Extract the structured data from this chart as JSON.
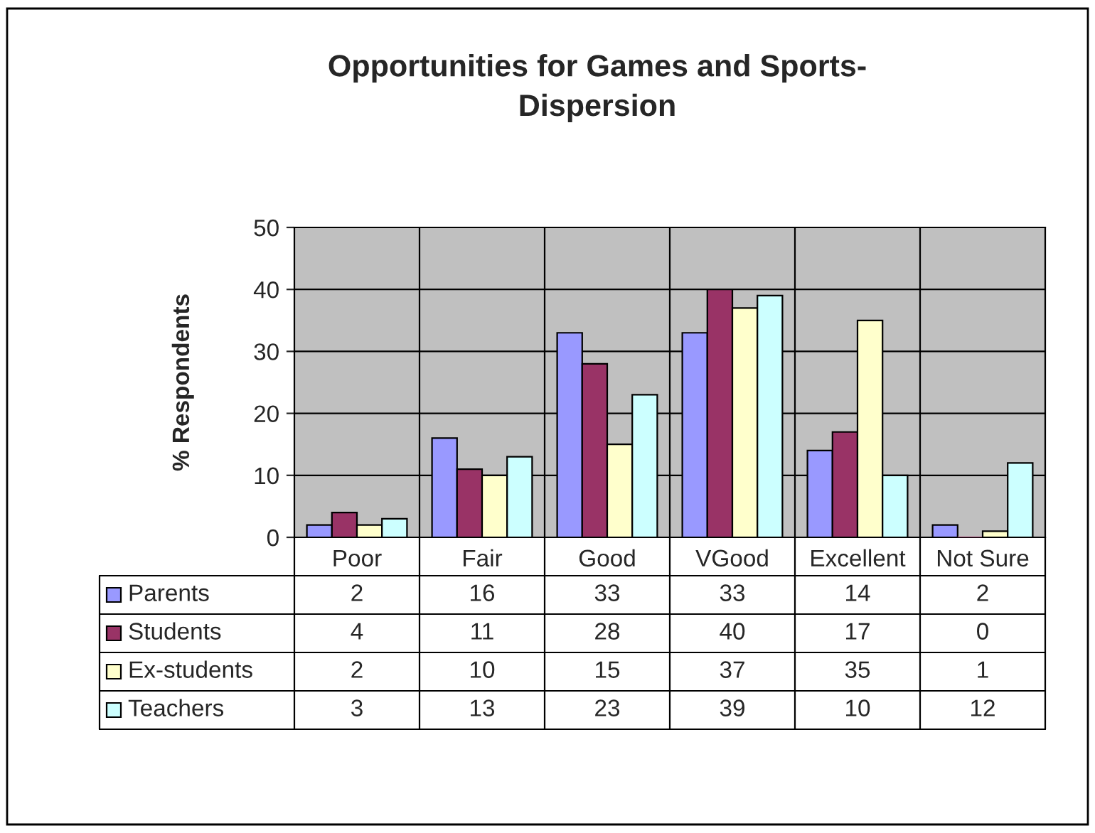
{
  "chart_data": {
    "type": "bar",
    "title": "Opportunities for Games and Sports-\nDispersion",
    "ylabel": "% Respondents",
    "categories": [
      "Poor",
      "Fair",
      "Good",
      "VGood",
      "Excellent",
      "Not Sure"
    ],
    "series": [
      {
        "name": "Parents",
        "color": "#9999ff",
        "values": [
          2,
          16,
          33,
          33,
          14,
          2
        ]
      },
      {
        "name": "Students",
        "color": "#993366",
        "values": [
          4,
          11,
          28,
          40,
          17,
          0
        ]
      },
      {
        "name": "Ex-students",
        "color": "#ffffcc",
        "values": [
          2,
          10,
          15,
          37,
          35,
          1
        ]
      },
      {
        "name": "Teachers",
        "color": "#ccffff",
        "values": [
          3,
          13,
          23,
          39,
          10,
          12
        ]
      }
    ],
    "ylim": [
      0,
      50
    ],
    "yticks": [
      0,
      10,
      20,
      30,
      40,
      50
    ],
    "grid": true,
    "legend": "bottom",
    "data_labels": true
  }
}
